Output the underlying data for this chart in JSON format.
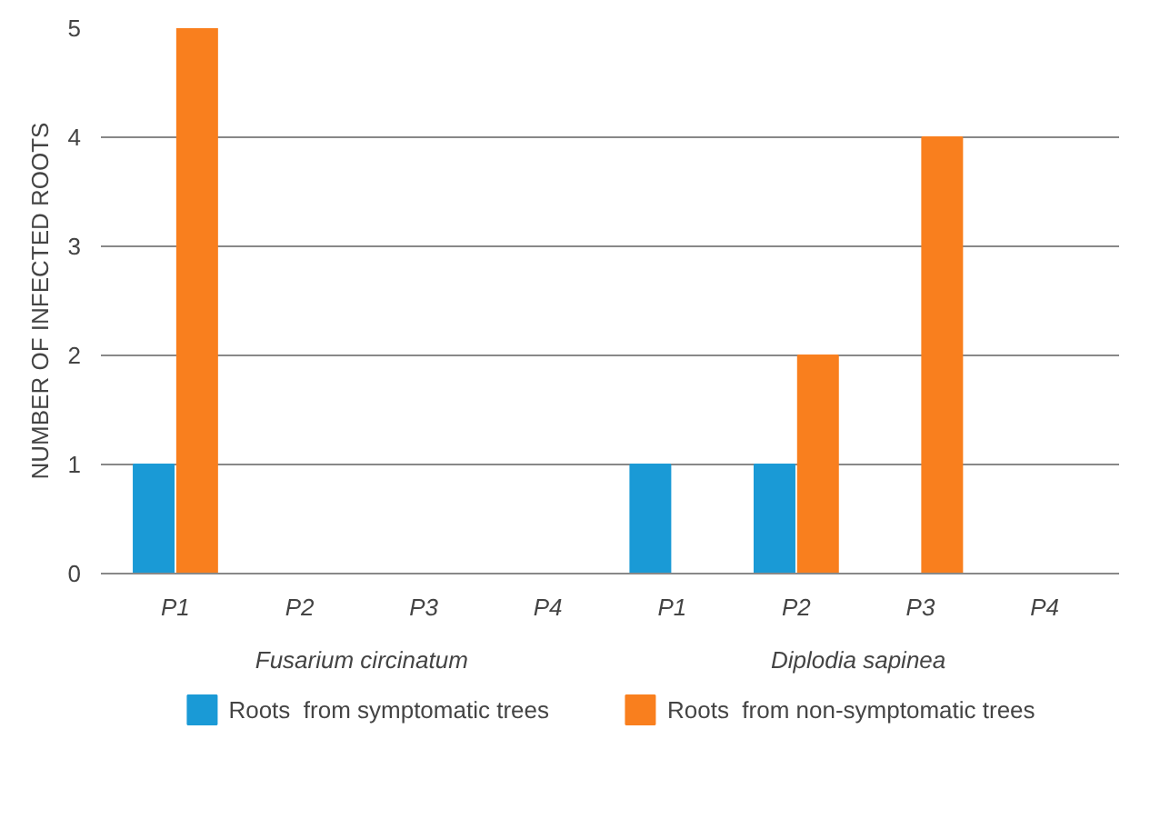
{
  "chart_data": {
    "type": "bar",
    "ylabel": "NUMBER OF INFECTED ROOTS",
    "categories": [
      "P1",
      "P2",
      "P3",
      "P4",
      "P1",
      "P2",
      "P3",
      "P4"
    ],
    "series": [
      {
        "name": "Roots  from symptomatic trees",
        "color": "#1a9ad6",
        "values": [
          1,
          0,
          0,
          0,
          1,
          1,
          0,
          0
        ]
      },
      {
        "name": "Roots  from non-symptomatic trees",
        "color": "#f97f1e",
        "values": [
          5,
          0,
          0,
          0,
          0,
          2,
          4,
          0
        ]
      }
    ],
    "ylim": [
      0,
      5
    ],
    "yticks": [
      0,
      1,
      2,
      3,
      4,
      5
    ],
    "grid": "y",
    "legend": "bottom",
    "annotations": [
      "Fusarium circinatum",
      "Diplodia sapinea"
    ]
  }
}
